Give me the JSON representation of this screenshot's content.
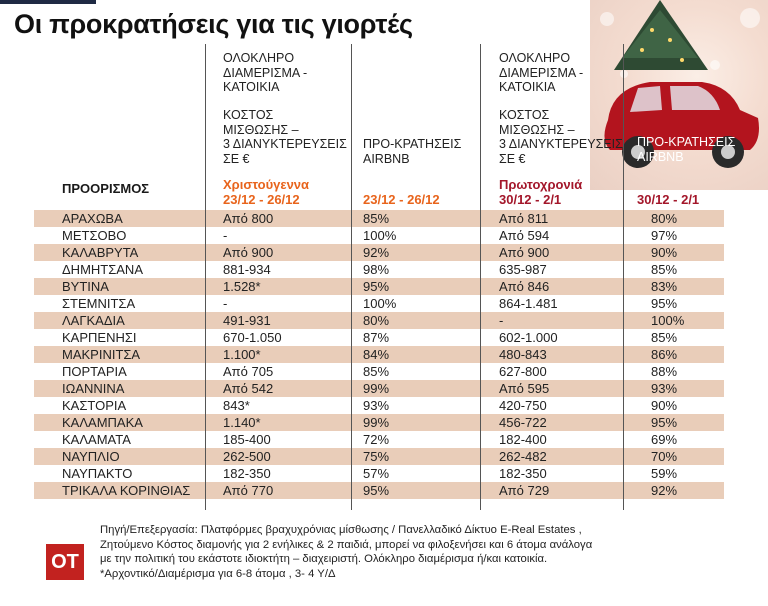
{
  "title": "Οι προκρατήσεις για τις γιορτές",
  "headers": {
    "destination": "ΠΡΟΟΡΙΣΜΟΣ",
    "whole_apartment": [
      "ΟΛΟΚΛΗΡΟ",
      "ΔΙΑΜΕΡΙΣΜΑ -",
      "ΚΑΤΟΙΚΙΑ"
    ],
    "rent_cost": [
      "ΚΟΣΤΟΣ",
      "ΜΙΣΘΩΣΗΣ –",
      "3 ΔΙΑΝΥΚΤΕΡΕΥΣΕΙΣ",
      "ΣΕ €"
    ],
    "prebook": [
      "ΠΡΟ-ΚΡΑΤΗΣΕΙΣ",
      "AIRBNB"
    ],
    "christmas_label": "Χριστούγεννα",
    "christmas_dates": "23/12 - 26/12",
    "christmas_dates_prebook": "23/12 - 26/12",
    "newyear_label": "Πρωτοχρονιά",
    "newyear_dates": "30/12 - 2/1",
    "newyear_dates_prebook": "30/12 - 2/1"
  },
  "colors": {
    "christmas": "#e8641c",
    "newyear": "#a3162a",
    "row_shade": "#e9cdb9",
    "logo": "#c2221f"
  },
  "chart_data": {
    "type": "table",
    "columns": [
      "ΠΡΟΟΡΙΣΜΟΣ",
      "Χριστούγεννα 23/12 - 26/12 ΚΟΣΤΟΣ",
      "23/12 - 26/12 ΠΡΟ-ΚΡΑΤΗΣΕΙΣ AIRBNB",
      "Πρωτοχρονιά 30/12 - 2/1 ΚΟΣΤΟΣ",
      "30/12 - 2/1 ΠΡΟ-ΚΡΑΤΗΣΕΙΣ AIRBNB"
    ],
    "rows": [
      [
        "ΑΡΑΧΩΒΑ",
        "Από 800",
        "85%",
        "Από 811",
        "80%"
      ],
      [
        "ΜΕΤΣΟΒΟ",
        "-",
        "100%",
        "Από 594",
        "97%"
      ],
      [
        "ΚΑΛΑΒΡΥΤΑ",
        "Από 900",
        "92%",
        "Από 900",
        "90%"
      ],
      [
        "ΔΗΜΗΤΣΑΝΑ",
        "881-934",
        "98%",
        "635-987",
        "85%"
      ],
      [
        "ΒΥΤΙΝΑ",
        "1.528*",
        "95%",
        "Από 846",
        "83%"
      ],
      [
        "ΣΤΕΜΝΙΤΣΑ",
        "-",
        "100%",
        "864-1.481",
        "95%"
      ],
      [
        "ΛΑΓΚΑΔΙΑ",
        "491-931",
        "80%",
        "-",
        "100%"
      ],
      [
        "ΚΑΡΠΕΝΗΣΙ",
        "670-1.050",
        "87%",
        "602-1.000",
        "85%"
      ],
      [
        "ΜΑΚΡΙΝΙΤΣΑ",
        "1.100*",
        "84%",
        "480-843",
        "86%"
      ],
      [
        "ΠΟΡΤΑΡΙΑ",
        "Από 705",
        "85%",
        "627-800",
        "88%"
      ],
      [
        "ΙΩΑΝΝΙΝΑ",
        "Από 542",
        "99%",
        "Από 595",
        "93%"
      ],
      [
        "ΚΑΣΤΟΡΙΑ",
        "843*",
        "93%",
        "420-750",
        "90%"
      ],
      [
        "ΚΑΛΑΜΠΑΚΑ",
        "1.140*",
        "99%",
        "456-722",
        "95%"
      ],
      [
        "ΚΑΛΑΜΑΤΑ",
        "185-400",
        "72%",
        "182-400",
        "69%"
      ],
      [
        "ΝΑΥΠΛΙΟ",
        "262-500",
        "75%",
        "262-482",
        "70%"
      ],
      [
        "ΝΑΥΠΑΚΤΟ",
        "182-350",
        "57%",
        "182-350",
        "59%"
      ],
      [
        "ΤΡΙΚΑΛΑ ΚΟΡΙΝΘΙΑΣ",
        "Από 770",
        "95%",
        "Από 729",
        "92%"
      ]
    ]
  },
  "footer": [
    "Πηγή/Επεξεργασία: Πλατφόρμες βραχυχρόνιας μίσθωσης / Πανελλαδικό Δίκτυο E-Real Estates ,",
    "Ζητούμενο Κόστος διαμονής για 2 ενήλικες & 2 παιδιά, μπορεί να φιλοξενήσει και 6 άτομα ανάλογα",
    "με την πολιτική του εκάστοτε ιδιοκτήτη – διαχειριστή. Ολόκληρο διαμέρισμα ή/και κατοικία.",
    "*Αρχοντικό/Διαμέρισμα  για 6-8 άτομα , 3- 4 Υ/Δ"
  ],
  "logo": "ΟΤ",
  "icons": [
    "christmas-car-tree-illustration"
  ]
}
